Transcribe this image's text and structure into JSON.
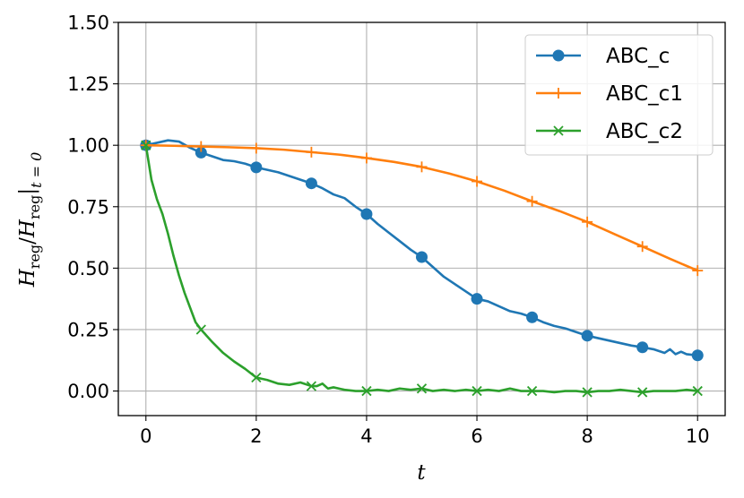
{
  "chart_data": {
    "type": "line",
    "title": "",
    "xlabel": "t",
    "ylabel": {
      "main": "H",
      "sub1": "reg",
      "slash": "/",
      "sub2": "reg",
      "bar": "|",
      "sub3": "t = 0"
    },
    "xlim": [
      -0.5,
      10.5
    ],
    "ylim": [
      -0.1,
      1.5
    ],
    "xticks": [
      0,
      2,
      4,
      6,
      8,
      10
    ],
    "xtick_labels": [
      "0",
      "2",
      "4",
      "6",
      "8",
      "10"
    ],
    "yticks": [
      0.0,
      0.25,
      0.5,
      0.75,
      1.0,
      1.25,
      1.5
    ],
    "ytick_labels": [
      "0.00",
      "0.25",
      "0.50",
      "0.75",
      "1.00",
      "1.25",
      "1.50"
    ],
    "grid": true,
    "legend_position": "top-right",
    "series": [
      {
        "name": "ABC_c",
        "color": "#1f77b4",
        "marker": "circle",
        "x": [
          0,
          0.2,
          0.4,
          0.6,
          0.8,
          1.0,
          1.2,
          1.4,
          1.6,
          1.8,
          2.0,
          2.2,
          2.4,
          2.6,
          2.8,
          3.0,
          3.2,
          3.4,
          3.6,
          3.8,
          4.0,
          4.2,
          4.4,
          4.6,
          4.8,
          5.0,
          5.2,
          5.4,
          5.6,
          5.8,
          6.0,
          6.2,
          6.4,
          6.6,
          6.8,
          7.0,
          7.2,
          7.4,
          7.6,
          7.8,
          8.0,
          8.2,
          8.4,
          8.6,
          8.8,
          9.0,
          9.2,
          9.4,
          9.5,
          9.6,
          9.7,
          9.8,
          10.0
        ],
        "y": [
          1.0,
          1.01,
          1.02,
          1.015,
          0.99,
          0.97,
          0.955,
          0.94,
          0.935,
          0.925,
          0.91,
          0.9,
          0.89,
          0.875,
          0.86,
          0.845,
          0.825,
          0.8,
          0.785,
          0.75,
          0.72,
          0.68,
          0.645,
          0.61,
          0.575,
          0.545,
          0.505,
          0.465,
          0.435,
          0.405,
          0.375,
          0.365,
          0.345,
          0.325,
          0.315,
          0.3,
          0.28,
          0.265,
          0.255,
          0.24,
          0.225,
          0.215,
          0.205,
          0.195,
          0.185,
          0.178,
          0.17,
          0.155,
          0.17,
          0.15,
          0.16,
          0.15,
          0.145
        ],
        "marker_x": [
          0,
          1,
          2,
          3,
          4,
          5,
          6,
          7,
          8,
          9,
          10
        ],
        "marker_y": [
          1.0,
          0.97,
          0.91,
          0.845,
          0.72,
          0.545,
          0.375,
          0.3,
          0.225,
          0.178,
          0.145
        ]
      },
      {
        "name": "ABC_c1",
        "color": "#ff7f0e",
        "marker": "plus",
        "x": [
          0,
          0.5,
          1.0,
          1.5,
          2.0,
          2.5,
          3.0,
          3.5,
          4.0,
          4.5,
          5.0,
          5.5,
          6.0,
          6.5,
          7.0,
          7.5,
          8.0,
          8.5,
          9.0,
          9.5,
          10.0
        ],
        "y": [
          1.0,
          0.998,
          0.995,
          0.992,
          0.988,
          0.982,
          0.972,
          0.962,
          0.948,
          0.932,
          0.912,
          0.885,
          0.853,
          0.815,
          0.772,
          0.732,
          0.688,
          0.638,
          0.588,
          0.538,
          0.49
        ],
        "marker_x": [
          0,
          1,
          2,
          3,
          4,
          5,
          6,
          7,
          8,
          9,
          10
        ],
        "marker_y": [
          1.0,
          0.995,
          0.988,
          0.972,
          0.948,
          0.912,
          0.853,
          0.772,
          0.688,
          0.588,
          0.49
        ]
      },
      {
        "name": "ABC_c2",
        "color": "#2ca02c",
        "marker": "x",
        "x": [
          0,
          0.1,
          0.2,
          0.3,
          0.4,
          0.5,
          0.6,
          0.7,
          0.8,
          0.9,
          1.0,
          1.2,
          1.4,
          1.6,
          1.8,
          2.0,
          2.2,
          2.4,
          2.6,
          2.8,
          3.0,
          3.1,
          3.2,
          3.3,
          3.4,
          3.6,
          3.8,
          4.0,
          4.2,
          4.4,
          4.6,
          4.8,
          5.0,
          5.2,
          5.4,
          5.6,
          5.8,
          6.0,
          6.2,
          6.4,
          6.6,
          6.8,
          7.0,
          7.2,
          7.4,
          7.6,
          7.8,
          8.0,
          8.2,
          8.4,
          8.6,
          8.8,
          9.0,
          9.2,
          9.4,
          9.6,
          9.8,
          10.0
        ],
        "y": [
          1.0,
          0.86,
          0.78,
          0.72,
          0.64,
          0.55,
          0.47,
          0.4,
          0.34,
          0.28,
          0.25,
          0.2,
          0.155,
          0.12,
          0.09,
          0.055,
          0.045,
          0.03,
          0.025,
          0.035,
          0.02,
          0.02,
          0.03,
          0.01,
          0.015,
          0.005,
          0.0,
          0.0,
          0.005,
          0.0,
          0.01,
          0.005,
          0.01,
          0.0,
          0.005,
          0.0,
          0.005,
          0.0,
          0.005,
          0.0,
          0.01,
          0.0,
          0.0,
          0.0,
          -0.005,
          0.0,
          0.0,
          -0.005,
          0.0,
          0.0,
          0.005,
          0.0,
          -0.005,
          0.0,
          0.0,
          0.0,
          0.005,
          0.0
        ],
        "marker_x": [
          0,
          1,
          2,
          3,
          4,
          5,
          6,
          7,
          8,
          9,
          10
        ],
        "marker_y": [
          1.0,
          0.25,
          0.055,
          0.02,
          0.0,
          0.01,
          0.0,
          0.0,
          -0.005,
          -0.005,
          0.0
        ]
      }
    ]
  }
}
